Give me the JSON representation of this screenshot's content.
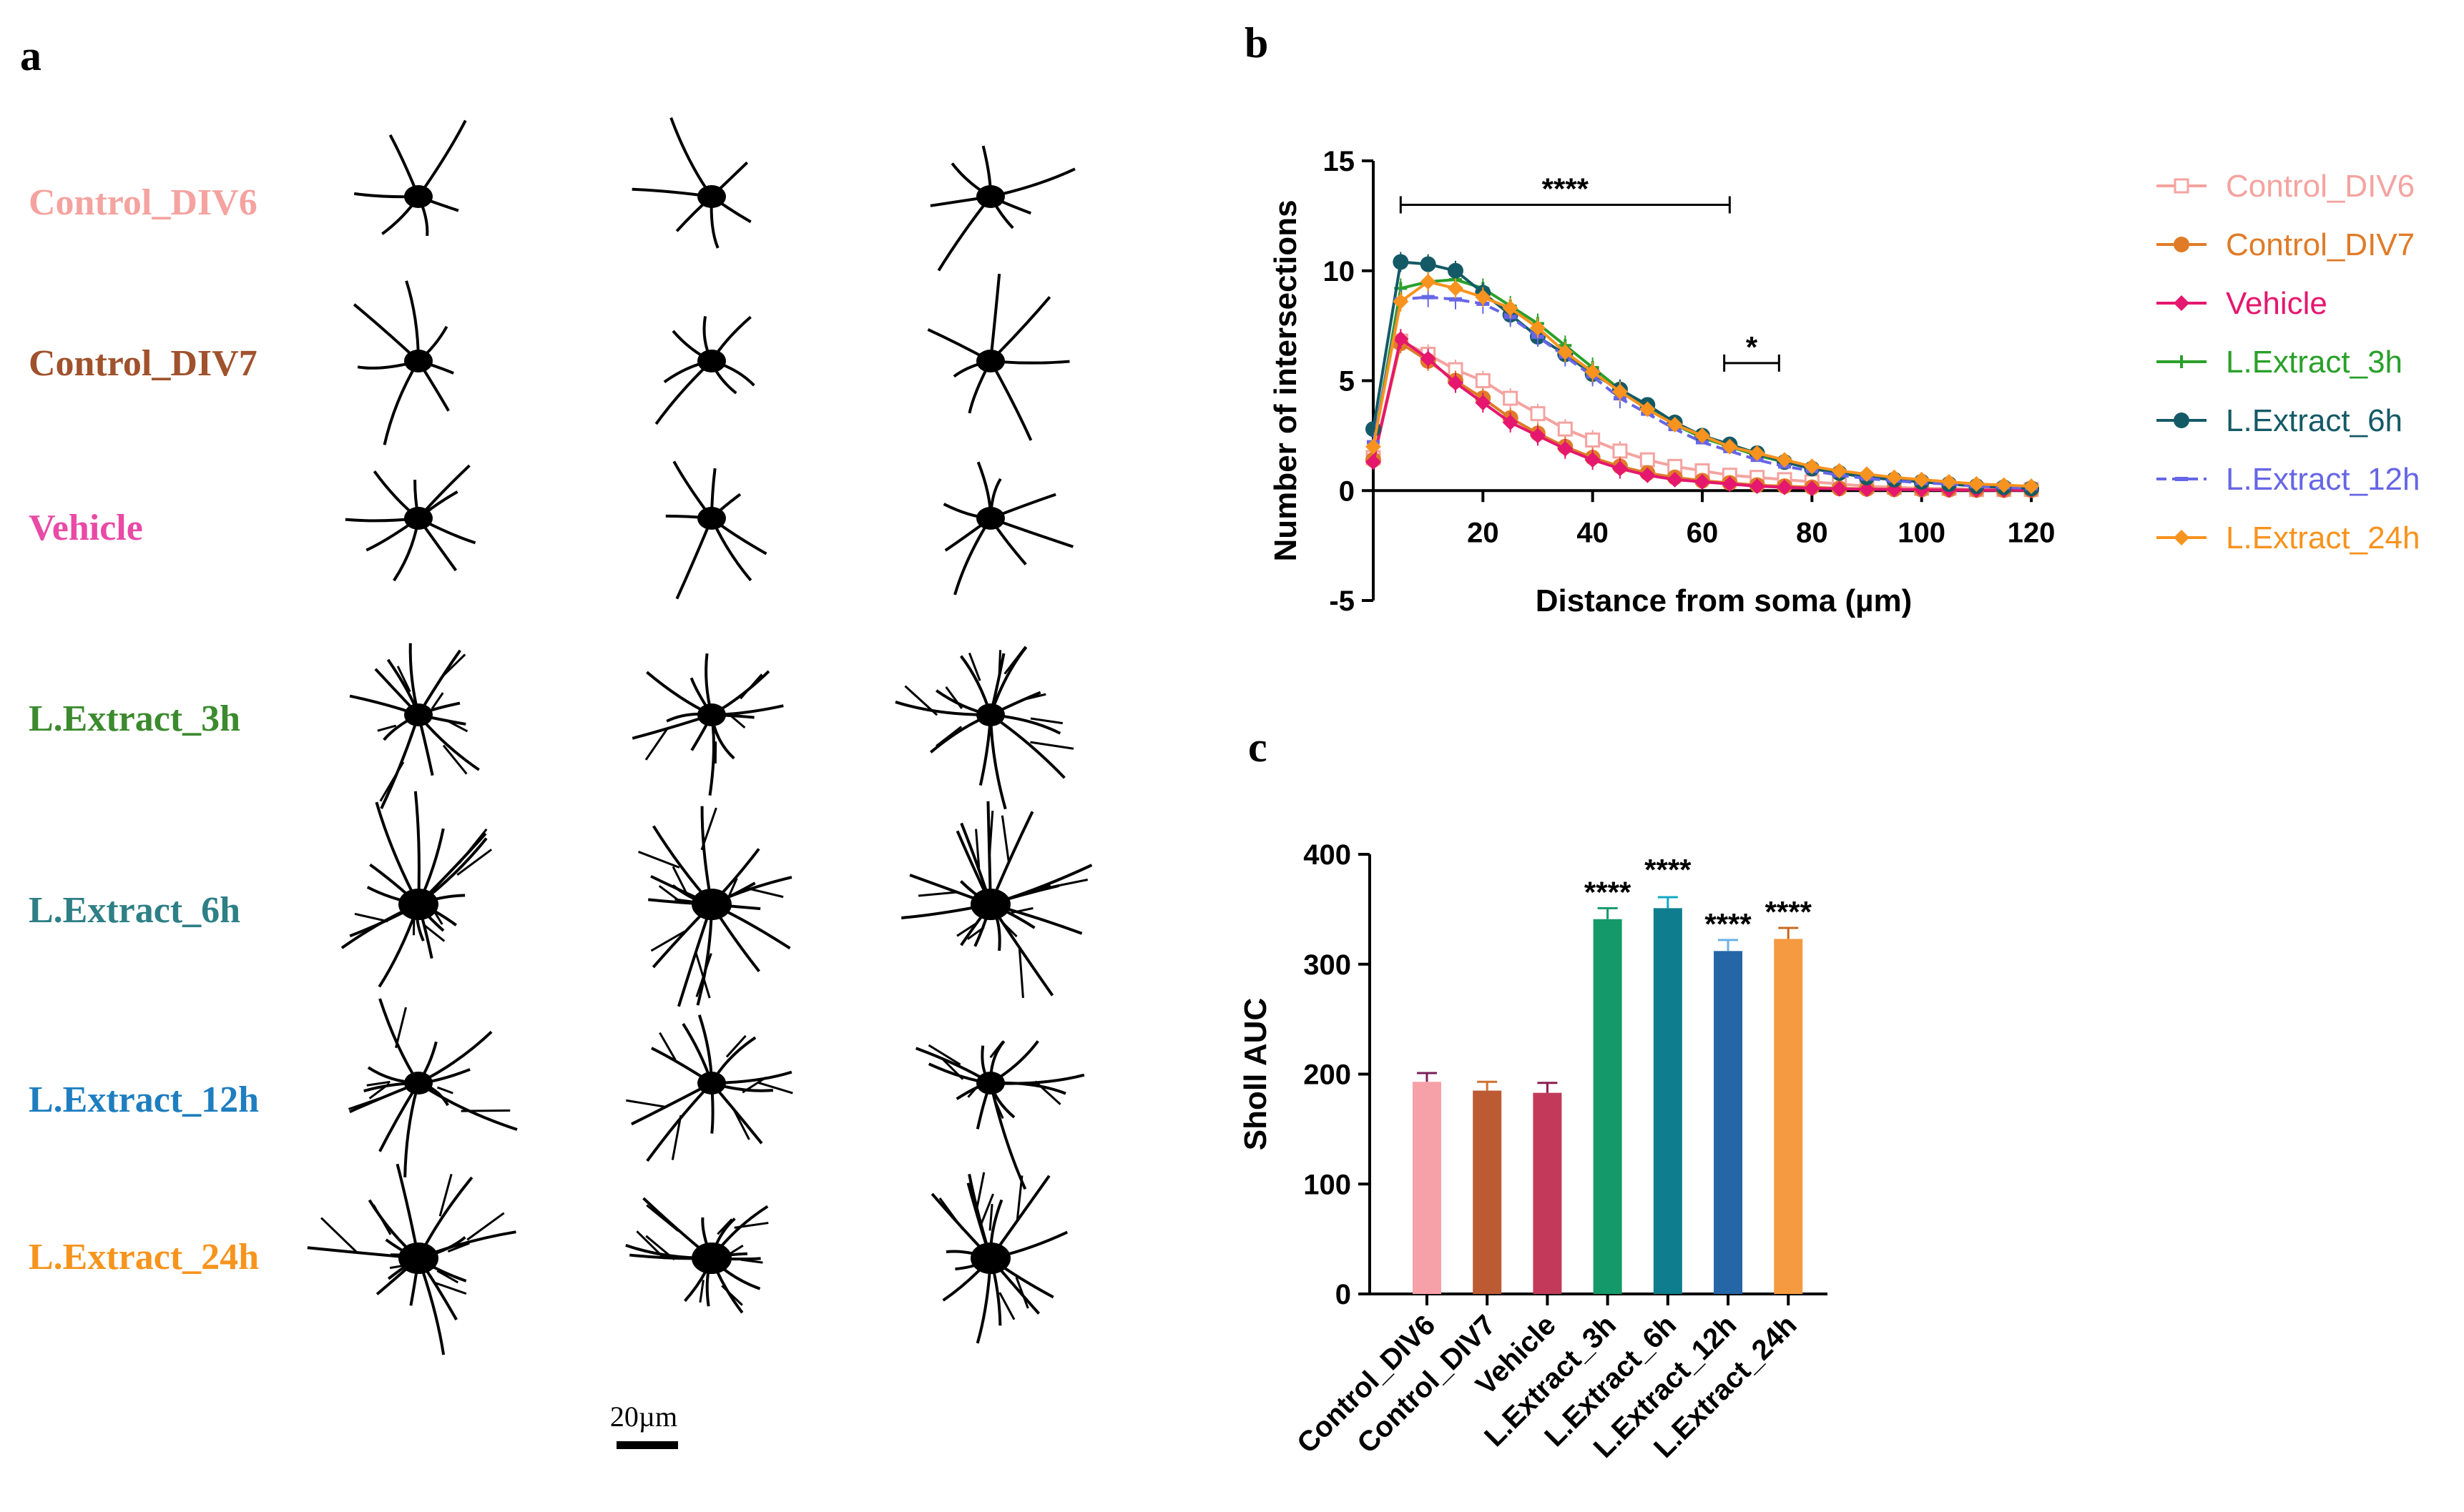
{
  "panels": {
    "a": {
      "letter": "a",
      "groups": [
        {
          "name": "Control_DIV6",
          "color": "#F4A3A0"
        },
        {
          "name": "Control_DIV7",
          "color": "#A0522D"
        },
        {
          "name": "Vehicle",
          "color": "#E84AA6"
        },
        {
          "name": "L.Extract_3h",
          "color": "#3C8A2E"
        },
        {
          "name": "L.Extract_6h",
          "color": "#2E7F86"
        },
        {
          "name": "L.Extract_12h",
          "color": "#1E7EC0"
        },
        {
          "name": "L.Extract_24h",
          "color": "#F7941D"
        }
      ],
      "scale_bar_label": "20µm"
    },
    "b": {
      "letter": "b"
    },
    "c": {
      "letter": "c"
    }
  },
  "chart_data": [
    {
      "id": "b",
      "type": "line",
      "title": "",
      "xlabel": "Distance from soma (µm)",
      "ylabel": "Number of intersections",
      "xlim": [
        0,
        120
      ],
      "ylim": [
        -5,
        15
      ],
      "xticks": [
        20,
        40,
        60,
        80,
        100,
        120
      ],
      "yticks": [
        -5,
        0,
        5,
        10,
        15
      ],
      "x": [
        0,
        5,
        10,
        15,
        20,
        25,
        30,
        35,
        40,
        45,
        50,
        55,
        60,
        65,
        70,
        75,
        80,
        85,
        90,
        95,
        100,
        105,
        110,
        115,
        120
      ],
      "series": [
        {
          "name": "Control_DIV6",
          "color": "#F4A3A0",
          "marker": "square-open",
          "values": [
            1.5,
            6.8,
            6.2,
            5.5,
            5.0,
            4.2,
            3.5,
            2.8,
            2.3,
            1.8,
            1.4,
            1.1,
            0.9,
            0.7,
            0.6,
            0.5,
            0.4,
            0.3,
            0.2,
            0.15,
            0.1,
            0.1,
            0.05,
            0.05,
            0.05
          ]
        },
        {
          "name": "Control_DIV7",
          "color": "#E07B28",
          "marker": "circle",
          "values": [
            1.4,
            6.7,
            5.9,
            5.0,
            4.2,
            3.3,
            2.6,
            2.0,
            1.5,
            1.1,
            0.8,
            0.6,
            0.45,
            0.35,
            0.25,
            0.2,
            0.15,
            0.1,
            0.08,
            0.06,
            0.05,
            0.04,
            0.03,
            0.02,
            0.02
          ]
        },
        {
          "name": "Vehicle",
          "color": "#E5176E",
          "marker": "diamond",
          "values": [
            1.3,
            6.9,
            6.0,
            4.9,
            4.0,
            3.1,
            2.5,
            1.9,
            1.4,
            1.0,
            0.7,
            0.5,
            0.4,
            0.3,
            0.2,
            0.15,
            0.1,
            0.08,
            0.06,
            0.05,
            0.04,
            0.03,
            0.02,
            0.02,
            0.02
          ]
        },
        {
          "name": "L.Extract_3h",
          "color": "#2AA02A",
          "marker": "cross",
          "values": [
            2.0,
            9.2,
            9.5,
            9.6,
            9.2,
            8.4,
            7.6,
            6.6,
            5.6,
            4.6,
            3.8,
            3.0,
            2.4,
            2.0,
            1.6,
            1.3,
            1.0,
            0.8,
            0.6,
            0.5,
            0.4,
            0.3,
            0.25,
            0.2,
            0.15
          ]
        },
        {
          "name": "L.Extract_6h",
          "color": "#145A66",
          "marker": "circle",
          "values": [
            2.8,
            10.4,
            10.3,
            10.0,
            9.0,
            8.0,
            7.0,
            6.2,
            5.3,
            4.6,
            3.9,
            3.1,
            2.5,
            2.1,
            1.7,
            1.3,
            1.0,
            0.8,
            0.6,
            0.5,
            0.4,
            0.3,
            0.2,
            0.15,
            0.1
          ]
        },
        {
          "name": "L.Extract_12h",
          "color": "#6666E6",
          "marker": "dash",
          "values": [
            2.2,
            8.7,
            8.8,
            8.7,
            8.5,
            7.9,
            7.0,
            6.1,
            5.2,
            4.2,
            3.5,
            2.8,
            2.2,
            1.8,
            1.4,
            1.1,
            0.9,
            0.7,
            0.55,
            0.45,
            0.35,
            0.3,
            0.2,
            0.15,
            0.1
          ]
        },
        {
          "name": "L.Extract_24h",
          "color": "#F7931E",
          "marker": "diamond",
          "values": [
            2.0,
            8.6,
            9.5,
            9.2,
            8.8,
            8.3,
            7.4,
            6.3,
            5.4,
            4.5,
            3.7,
            3.0,
            2.5,
            2.0,
            1.7,
            1.4,
            1.1,
            0.9,
            0.75,
            0.6,
            0.5,
            0.4,
            0.3,
            0.25,
            0.2
          ]
        }
      ],
      "annotations": [
        {
          "text": "****",
          "x_start": 5,
          "x_end": 65,
          "y": 13.0
        },
        {
          "text": "*",
          "x_start": 64,
          "x_end": 74,
          "y": 5.8
        }
      ],
      "legend_position": "right"
    },
    {
      "id": "c",
      "type": "bar",
      "title": "",
      "xlabel": "",
      "ylabel": "Sholl AUC",
      "ylim": [
        0,
        400
      ],
      "yticks": [
        0,
        100,
        200,
        300,
        400
      ],
      "categories": [
        "Control_DIV6",
        "Control_DIV7",
        "Vehicle",
        "L.Extract_3h",
        "L.Extract_6h",
        "L.Extract_12h",
        "L.Extract_24h"
      ],
      "values": [
        193,
        185,
        183,
        341,
        351,
        312,
        323
      ],
      "errors": [
        8,
        8,
        9,
        10,
        10,
        10,
        10
      ],
      "bar_colors": [
        "#F6A1A7",
        "#BC5B33",
        "#C2395A",
        "#14996B",
        "#0E7E8F",
        "#2566A6",
        "#F59A40"
      ],
      "error_colors": [
        "#7A1F5C",
        "#D07030",
        "#8B1E4E",
        "#14996B",
        "#13A8C4",
        "#6BB2E6",
        "#C76A1F"
      ],
      "significance": [
        "",
        "",
        "",
        "****",
        "****",
        "****",
        "****"
      ]
    }
  ]
}
